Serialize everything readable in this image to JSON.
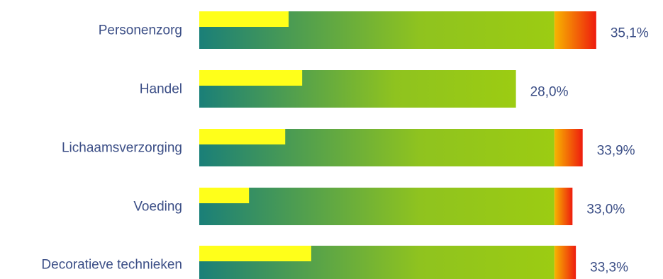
{
  "chart_data": {
    "type": "bar",
    "orientation": "horizontal",
    "categories": [
      "Personenzorg",
      "Handel",
      "Lichaamsverzorging",
      "Voeding",
      "Decoratieve technieken"
    ],
    "values": [
      35.1,
      28.0,
      33.9,
      33.0,
      33.3
    ],
    "value_labels": [
      "35,1%",
      "28,0%",
      "33,9%",
      "33,0%",
      "33,3%"
    ],
    "highlight_values": [
      7.9,
      9.1,
      7.6,
      4.4,
      9.9
    ],
    "grid": false,
    "legend": "none",
    "colors": {
      "bar_start": "#1a7f78",
      "bar_mid": "#8fc31f",
      "bar_end": "#9ccc12",
      "warm_start": "#f7b500",
      "warm_end": "#ee1c0e",
      "highlight": "#ffff1a",
      "text": "#3b4e86"
    }
  }
}
